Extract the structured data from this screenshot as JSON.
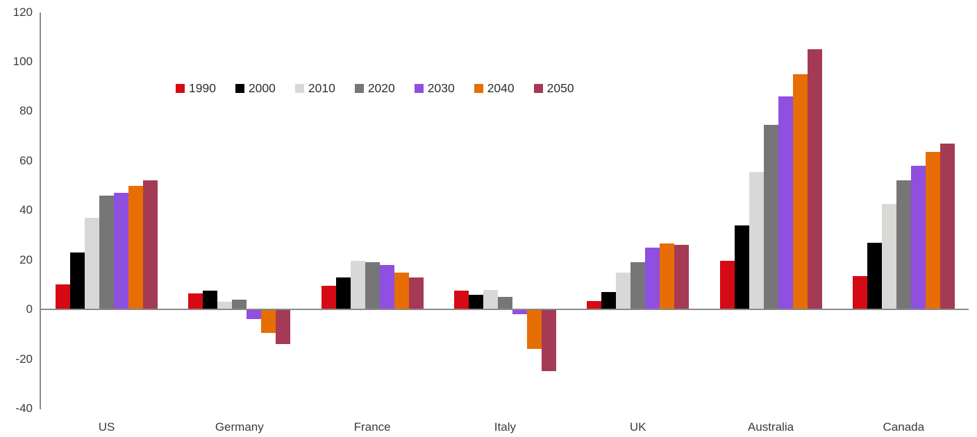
{
  "chart_data": {
    "type": "bar",
    "title": "",
    "xlabel": "",
    "ylabel": "",
    "categories": [
      "US",
      "Germany",
      "France",
      "Italy",
      "UK",
      "Australia",
      "Canada"
    ],
    "series": [
      {
        "name": "1990",
        "color": "#d60a14",
        "values": [
          10,
          6.5,
          9.5,
          7.5,
          3.5,
          19.5,
          13.5
        ]
      },
      {
        "name": "2000",
        "color": "#000000",
        "values": [
          23,
          7.5,
          13,
          6,
          7,
          34,
          27
        ]
      },
      {
        "name": "2010",
        "color": "#d8d8d6",
        "values": [
          37,
          3,
          19.5,
          8,
          15,
          55.5,
          42.5
        ]
      },
      {
        "name": "2020",
        "color": "#767676",
        "values": [
          46,
          4,
          19,
          5,
          19,
          74.5,
          52
        ]
      },
      {
        "name": "2030",
        "color": "#8f4fe0",
        "values": [
          47,
          -4,
          18,
          -2,
          25,
          86,
          58
        ]
      },
      {
        "name": "2040",
        "color": "#e66e05",
        "values": [
          50,
          -9.5,
          15,
          -16,
          26.5,
          95,
          63.5
        ]
      },
      {
        "name": "2050",
        "color": "#a53a55",
        "values": [
          52,
          -14,
          13,
          -25,
          26,
          105,
          67
        ]
      }
    ],
    "ylim": [
      -40,
      120
    ],
    "yticks": [
      120,
      100,
      80,
      60,
      40,
      20,
      0,
      -20,
      -40
    ],
    "grid": false,
    "legend_position": "top-left-inside",
    "axis_color": "#8a8a8a",
    "text_color": "#3a3a3a"
  }
}
